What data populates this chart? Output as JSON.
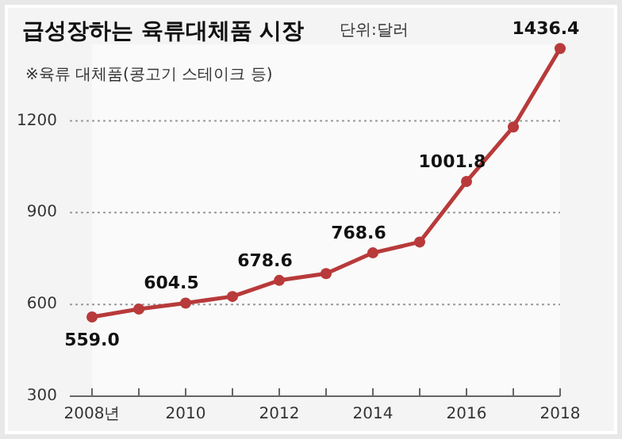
{
  "chart_data": {
    "type": "line",
    "title": "급성장하는 육류대체품 시장",
    "subtitle": "단위:달러",
    "annotations": [
      "※육류 대체품(콩고기 스테이크 등)"
    ],
    "x": [
      2008,
      2009,
      2010,
      2011,
      2012,
      2013,
      2014,
      2015,
      2016,
      2017,
      2018
    ],
    "series": [
      {
        "color": "#b83a3a",
        "values": [
          559.0,
          585,
          604.5,
          626,
          678.6,
          701,
          768.6,
          804,
          1001.8,
          1180,
          1436.4
        ],
        "value_labels": [
          "559.0",
          null,
          "604.5",
          null,
          "678.6",
          null,
          "768.6",
          null,
          "1001.8",
          null,
          "1436.4"
        ]
      }
    ],
    "xlim": [
      2008,
      2018
    ],
    "xticks": [
      {
        "value": 2008,
        "label": "2008년"
      },
      {
        "value": 2009,
        "label": null
      },
      2010,
      {
        "value": 2011,
        "label": null
      },
      2012,
      {
        "value": 2013,
        "label": null
      },
      2014,
      {
        "value": 2015,
        "label": null
      },
      2016,
      {
        "value": 2017,
        "label": null
      },
      2018
    ],
    "ylim": [
      300,
      1450
    ],
    "yticks": [
      300,
      600,
      900,
      1200
    ],
    "grid": "y",
    "marker": "circle",
    "line_style": "solid"
  }
}
